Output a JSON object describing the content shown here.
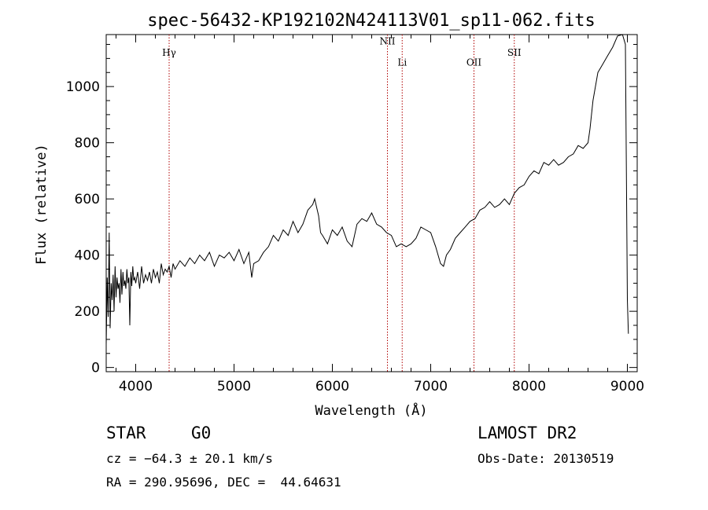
{
  "chart_data": {
    "type": "line",
    "title": "spec-56432-KP192102N424113V01_sp11-062.fits",
    "xlabel": "Wavelength (Å)",
    "ylabel": "Flux (relative)",
    "xlim": [
      3700,
      9100
    ],
    "ylim": [
      -15,
      1185
    ],
    "xticks": [
      4000,
      5000,
      6000,
      7000,
      8000,
      9000
    ],
    "yticks": [
      0,
      200,
      400,
      600,
      800,
      1000
    ],
    "grid": false,
    "series": [
      {
        "x": [
          3700,
          3710,
          3720,
          3730,
          3740,
          3750,
          3760,
          3770,
          3780,
          3790,
          3800,
          3810,
          3820,
          3830,
          3840,
          3850,
          3860,
          3870,
          3880,
          3890,
          3900,
          3910,
          3920,
          3930,
          3940,
          3950,
          3960,
          3970,
          3980,
          3990,
          4000,
          4020,
          4040,
          4060,
          4080,
          4100,
          4120,
          4140,
          4160,
          4180,
          4200,
          4220,
          4240,
          4260,
          4280,
          4300,
          4320,
          4340,
          4360,
          4380,
          4400,
          4450,
          4500,
          4550,
          4600,
          4650,
          4700,
          4750,
          4800,
          4850,
          4900,
          4950,
          5000,
          5050,
          5100,
          5150,
          5180,
          5200,
          5250,
          5300,
          5350,
          5400,
          5450,
          5500,
          5550,
          5600,
          5650,
          5700,
          5750,
          5800,
          5820,
          5840,
          5860,
          5880,
          5900,
          5950,
          6000,
          6050,
          6100,
          6150,
          6200,
          6250,
          6300,
          6350,
          6400,
          6450,
          6500,
          6550,
          6600,
          6650,
          6700,
          6750,
          6800,
          6850,
          6900,
          6950,
          7000,
          7050,
          7100,
          7130,
          7160,
          7200,
          7250,
          7300,
          7350,
          7400,
          7450,
          7500,
          7550,
          7600,
          7650,
          7700,
          7750,
          7800,
          7850,
          7900,
          7950,
          8000,
          8050,
          8100,
          8150,
          8200,
          8250,
          8300,
          8350,
          8400,
          8450,
          8500,
          8550,
          8600,
          8620,
          8650,
          8700,
          8750,
          8800,
          8850,
          8900,
          8950,
          8980,
          9000,
          9010
        ],
        "values": [
          80,
          320,
          180,
          480,
          140,
          300,
          240,
          330,
          200,
          360,
          250,
          320,
          280,
          300,
          230,
          350,
          260,
          340,
          290,
          310,
          280,
          350,
          300,
          320,
          150,
          340,
          290,
          360,
          310,
          320,
          300,
          340,
          280,
          360,
          300,
          330,
          310,
          340,
          300,
          350,
          320,
          340,
          300,
          370,
          330,
          350,
          340,
          360,
          320,
          370,
          350,
          380,
          360,
          390,
          370,
          400,
          380,
          410,
          360,
          400,
          390,
          410,
          380,
          420,
          370,
          410,
          320,
          370,
          380,
          410,
          430,
          470,
          450,
          490,
          470,
          520,
          480,
          510,
          560,
          580,
          600,
          570,
          540,
          480,
          470,
          440,
          490,
          470,
          500,
          450,
          430,
          510,
          530,
          520,
          550,
          510,
          500,
          480,
          470,
          430,
          440,
          430,
          440,
          460,
          500,
          490,
          480,
          430,
          370,
          360,
          400,
          420,
          460,
          480,
          500,
          520,
          530,
          560,
          570,
          590,
          570,
          580,
          600,
          580,
          620,
          640,
          650,
          680,
          700,
          690,
          730,
          720,
          740,
          720,
          730,
          750,
          760,
          790,
          780,
          800,
          850,
          950,
          1050,
          1080,
          1110,
          1140,
          1180,
          1200,
          1150,
          240,
          120
        ]
      }
    ],
    "annotations": [
      {
        "label": "Hγ",
        "x": 4340,
        "y": 1110
      },
      {
        "label": "NII",
        "x": 6560,
        "y": 1150
      },
      {
        "label": "Li",
        "x": 6710,
        "y": 1075
      },
      {
        "label": "OII",
        "x": 7440,
        "y": 1075
      },
      {
        "label": "SII",
        "x": 7850,
        "y": 1110
      }
    ],
    "line_color": "#000000",
    "marker_line_color": "#b00000"
  },
  "info": {
    "object_class": "STAR",
    "subclass": "G0",
    "survey": "LAMOST DR2",
    "redshift": "cz = −64.3 ± 20.1 km/s",
    "obs_date": "Obs-Date: 20130519",
    "coords": "RA = 290.95696, DEC =  44.64631"
  }
}
